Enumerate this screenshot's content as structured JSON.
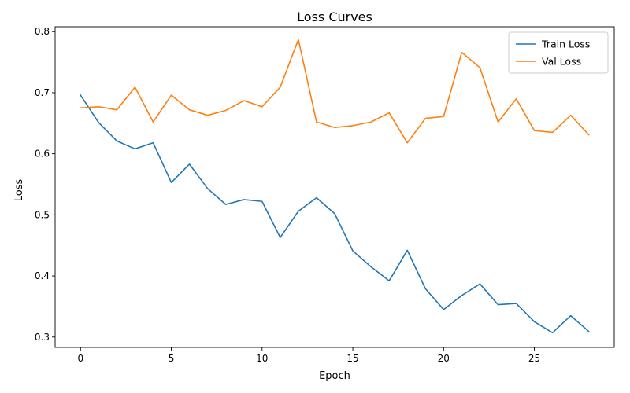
{
  "chart_data": {
    "type": "line",
    "title": "Loss Curves",
    "xlabel": "Epoch",
    "ylabel": "Loss",
    "xlim": [
      -1.4,
      29.4
    ],
    "ylim": [
      0.283,
      0.808
    ],
    "xticks": [
      0,
      5,
      10,
      15,
      20,
      25
    ],
    "yticks": [
      0.3,
      0.4,
      0.5,
      0.6,
      0.7,
      0.8
    ],
    "grid": false,
    "legend_position": "top-right",
    "x": [
      0,
      1,
      2,
      3,
      4,
      5,
      6,
      7,
      8,
      9,
      10,
      11,
      12,
      13,
      14,
      15,
      16,
      17,
      18,
      19,
      20,
      21,
      22,
      23,
      24,
      25,
      26,
      27,
      28
    ],
    "series": [
      {
        "name": "Train Loss",
        "color": "#1f77b4",
        "values": [
          0.696,
          0.651,
          0.621,
          0.608,
          0.618,
          0.553,
          0.583,
          0.543,
          0.517,
          0.525,
          0.522,
          0.463,
          0.506,
          0.528,
          0.502,
          0.441,
          0.415,
          0.392,
          0.442,
          0.379,
          0.345,
          0.368,
          0.387,
          0.353,
          0.355,
          0.325,
          0.307,
          0.335,
          0.309
        ]
      },
      {
        "name": "Val Loss",
        "color": "#ff7f0e",
        "values": [
          0.675,
          0.677,
          0.672,
          0.709,
          0.652,
          0.696,
          0.672,
          0.663,
          0.671,
          0.687,
          0.677,
          0.709,
          0.787,
          0.652,
          0.643,
          0.646,
          0.652,
          0.667,
          0.618,
          0.658,
          0.661,
          0.766,
          0.741,
          0.652,
          0.69,
          0.638,
          0.635,
          0.663,
          0.631
        ]
      }
    ]
  }
}
